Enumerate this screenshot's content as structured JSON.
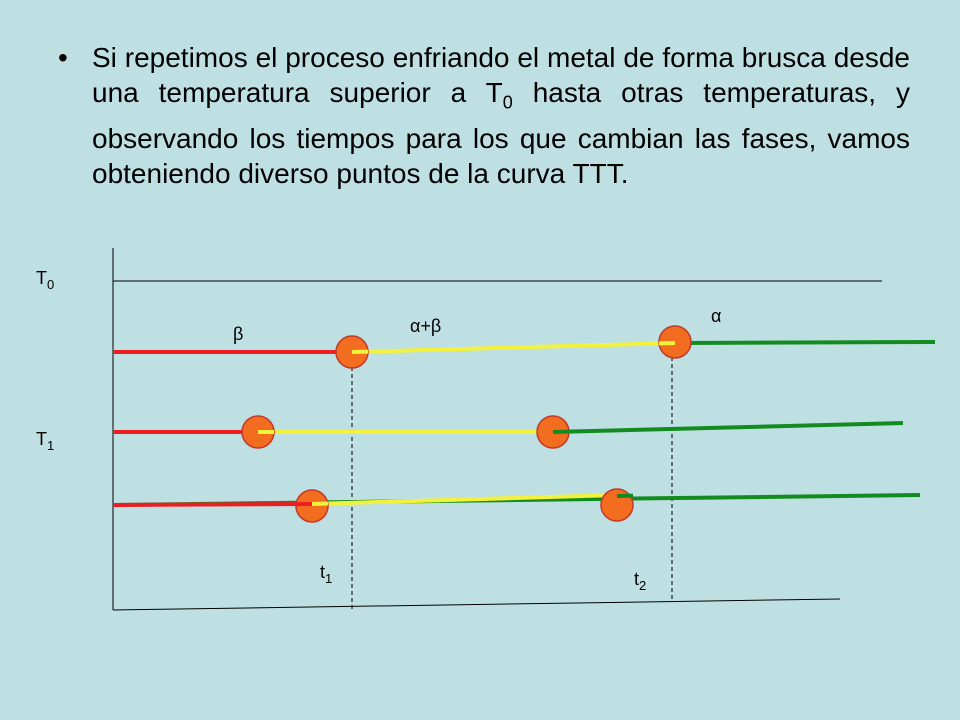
{
  "bullet": {
    "symbol": "•",
    "text_part1": "Si repetimos el proceso enfriando el metal de forma brusca desde  una temperatura superior a T",
    "text_sub": "0",
    "text_part2": " hasta otras temperaturas, y observando los tiempos para los que cambian las fases, vamos obteniendo diverso puntos de la curva TTT."
  },
  "diagram": {
    "labels": {
      "T0_main": "T",
      "T0_sub": "0",
      "T1_main": "T",
      "T1_sub": "1",
      "t1_main": "t",
      "t1_sub": "1",
      "t2_main": "t",
      "t2_sub": "2",
      "beta": "β",
      "alpha_beta": "α+β",
      "alpha": "α"
    },
    "colors": {
      "background": "#bfe0e3",
      "beta_phase": "#ee1c24",
      "alpha_beta_phase": "#f2f23c",
      "alpha_phase": "#128c1e",
      "marker_fill": "#f36d21",
      "marker_stroke": "#c0392b"
    }
  }
}
